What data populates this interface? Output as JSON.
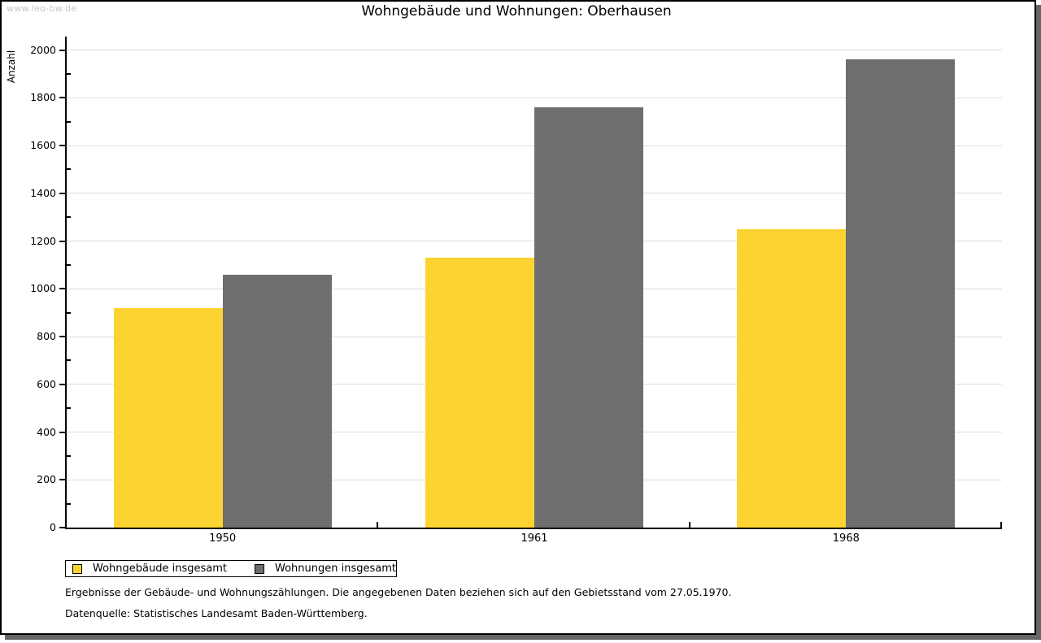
{
  "watermark": "www.leo-bw.de",
  "title": "Wohngebäude und Wohnungen: Oberhausen",
  "chart_data": {
    "type": "bar",
    "title": "Wohngebäude und Wohnungen: Oberhausen",
    "xlabel": "",
    "ylabel": "Anzahl",
    "categories": [
      "1950",
      "1961",
      "1968"
    ],
    "series": [
      {
        "name": "Wohngebäude insgesamt",
        "color": "#fcd330",
        "values": [
          920,
          1130,
          1250
        ]
      },
      {
        "name": "Wohnungen insgesamt",
        "color": "#6e6e6e",
        "values": [
          1060,
          1760,
          1960
        ]
      }
    ],
    "ylim": [
      0,
      2000
    ],
    "ytick_step": 200,
    "yminor_step": 100,
    "grid": "horizontal-major",
    "gridline_color": "#dcdcdc",
    "legend_position": "bottom-left"
  },
  "footnotes": [
    "Ergebnisse der Gebäude- und Wohnungszählungen. Die angegebenen Daten beziehen sich auf den Gebietsstand vom 27.05.1970.",
    "Datenquelle: Statistisches Landesamt Baden-Württemberg."
  ]
}
